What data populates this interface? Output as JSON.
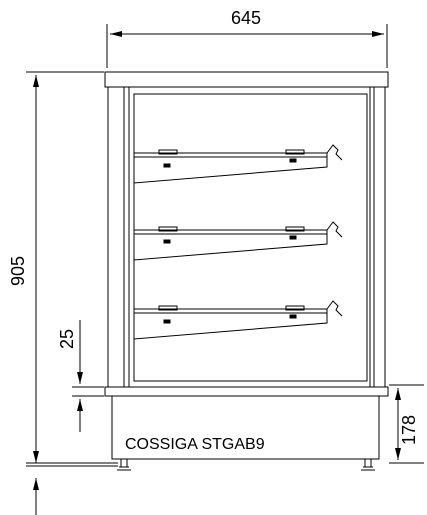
{
  "drawing": {
    "model_label": "COSSIGA STGAB9",
    "dimensions": {
      "width": "645",
      "height": "905",
      "base": "178",
      "gap": "25"
    },
    "shelf_count": 3
  }
}
